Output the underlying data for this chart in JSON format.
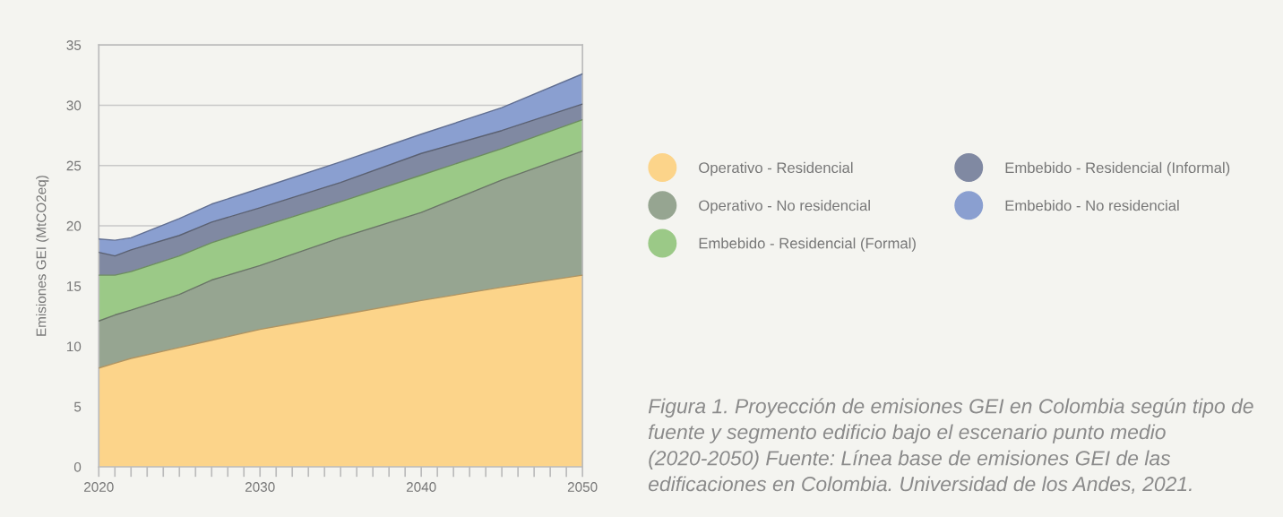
{
  "chart_data": {
    "type": "area",
    "stacked": true,
    "ylabel": "Emisiones GEI (MtCO2eq)",
    "x": [
      2020,
      2021,
      2022,
      2025,
      2027,
      2030,
      2035,
      2040,
      2045,
      2050
    ],
    "series": [
      {
        "name": "Operativo - Residencial",
        "color": "#fcd48a",
        "values": [
          8.2,
          8.6,
          9.0,
          9.9,
          10.5,
          11.4,
          12.6,
          13.8,
          14.9,
          15.9
        ]
      },
      {
        "name": "Operativo - No residencial",
        "color": "#96a591",
        "values": [
          3.9,
          4.0,
          4.0,
          4.4,
          5.0,
          5.3,
          6.4,
          7.3,
          8.9,
          10.3
        ]
      },
      {
        "name": "Embebido - Residencial (Formal)",
        "color": "#9bc987",
        "values": [
          3.8,
          3.3,
          3.2,
          3.2,
          3.1,
          3.2,
          3.0,
          3.1,
          2.6,
          2.6
        ]
      },
      {
        "name": "Embebido - Residencial (Informal)",
        "color": "#8089a2",
        "values": [
          1.9,
          1.6,
          1.8,
          1.7,
          1.7,
          1.6,
          1.6,
          1.8,
          1.5,
          1.3
        ]
      },
      {
        "name": "Embebido - No residencial",
        "color": "#8a9fd0",
        "values": [
          1.1,
          1.3,
          1.0,
          1.4,
          1.5,
          1.6,
          1.7,
          1.6,
          1.9,
          2.5
        ]
      }
    ],
    "xlim": [
      2020,
      2050
    ],
    "xticks": [
      2020,
      {
        "value": 2021,
        "label": null
      },
      {
        "value": 2022,
        "label": null
      },
      {
        "value": 2023,
        "label": null
      },
      {
        "value": 2024,
        "label": null
      },
      {
        "value": 2025,
        "label": null
      },
      {
        "value": 2026,
        "label": null
      },
      {
        "value": 2027,
        "label": null
      },
      {
        "value": 2028,
        "label": null
      },
      {
        "value": 2029,
        "label": null
      },
      2030,
      {
        "value": 2031,
        "label": null
      },
      {
        "value": 2032,
        "label": null
      },
      {
        "value": 2033,
        "label": null
      },
      {
        "value": 2034,
        "label": null
      },
      {
        "value": 2035,
        "label": null
      },
      {
        "value": 2036,
        "label": null
      },
      {
        "value": 2037,
        "label": null
      },
      {
        "value": 2038,
        "label": null
      },
      {
        "value": 2039,
        "label": null
      },
      2040,
      {
        "value": 2041,
        "label": null
      },
      {
        "value": 2042,
        "label": null
      },
      {
        "value": 2043,
        "label": null
      },
      {
        "value": 2044,
        "label": null
      },
      {
        "value": 2045,
        "label": null
      },
      {
        "value": 2046,
        "label": null
      },
      {
        "value": 2047,
        "label": null
      },
      {
        "value": 2048,
        "label": null
      },
      {
        "value": 2049,
        "label": null
      },
      2050
    ],
    "ylim": [
      0,
      35
    ],
    "yticks": [
      0,
      5,
      10,
      15,
      20,
      25,
      30,
      35
    ],
    "grid": "y",
    "legend": "right",
    "annotations": [
      "Figura 1. Proyección de emisiones GEI en Colombia según tipo de fuente y segmento edificio bajo el escenario punto medio (2020-2050) Fuente: Línea base de emisiones GEI de las edificaciones en Colombia. Universidad de los Andes, 2021."
    ]
  }
}
